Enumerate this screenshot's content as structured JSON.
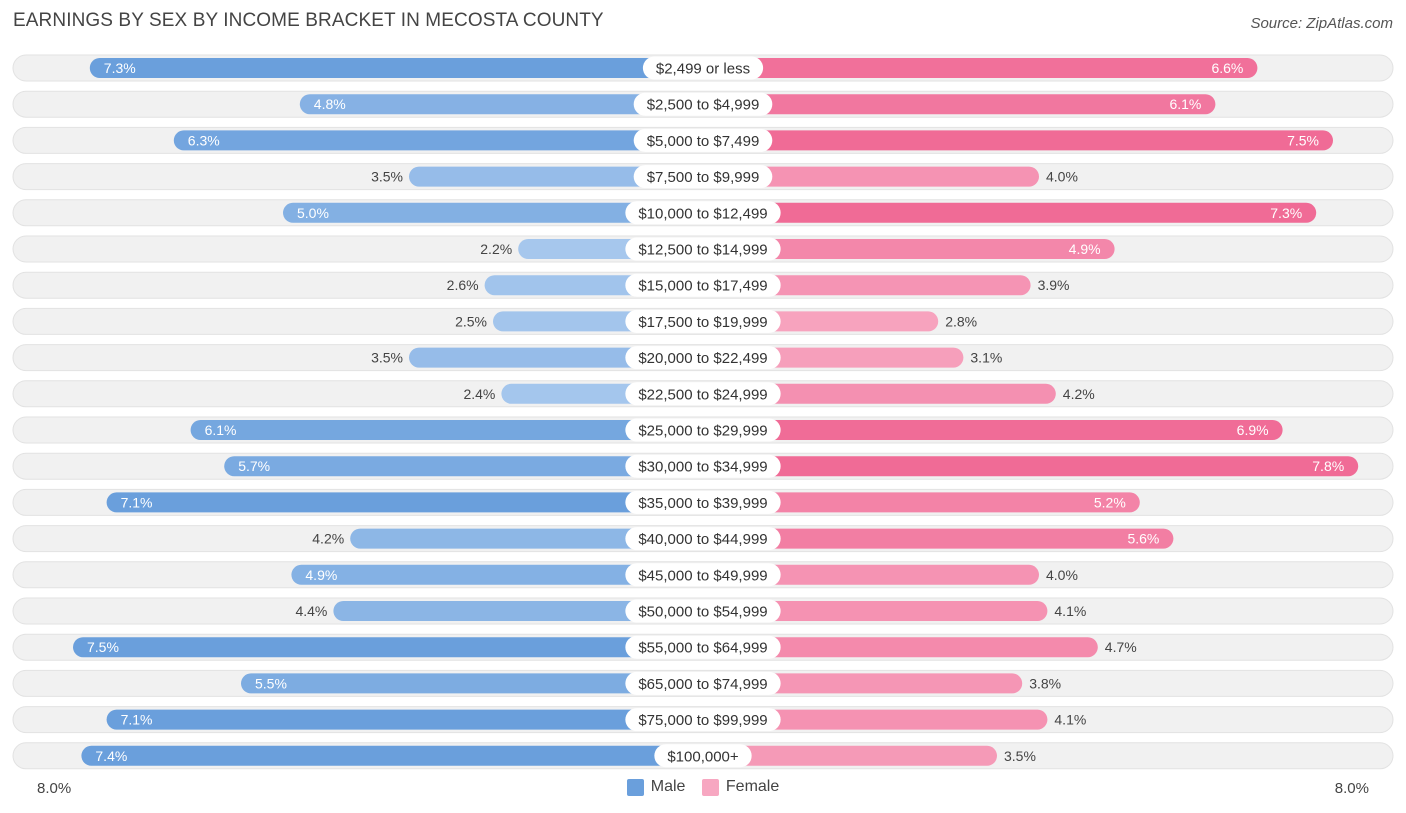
{
  "chart_data": {
    "type": "bar",
    "orientation": "horizontal-diverging",
    "title": "EARNINGS BY SEX BY INCOME BRACKET IN MECOSTA COUNTY",
    "source": "Source: ZipAtlas.com",
    "categories": [
      "$2,499 or less",
      "$2,500 to $4,999",
      "$5,000 to $7,499",
      "$7,500 to $9,999",
      "$10,000 to $12,499",
      "$12,500 to $14,999",
      "$15,000 to $17,499",
      "$17,500 to $19,999",
      "$20,000 to $22,499",
      "$22,500 to $24,999",
      "$25,000 to $29,999",
      "$30,000 to $34,999",
      "$35,000 to $39,999",
      "$40,000 to $44,999",
      "$45,000 to $49,999",
      "$50,000 to $54,999",
      "$55,000 to $64,999",
      "$65,000 to $74,999",
      "$75,000 to $99,999",
      "$100,000+"
    ],
    "series": [
      {
        "name": "Male",
        "values": [
          7.3,
          4.8,
          6.3,
          3.5,
          5.0,
          2.2,
          2.6,
          2.5,
          3.5,
          2.4,
          6.1,
          5.7,
          7.1,
          4.2,
          4.9,
          4.4,
          7.5,
          5.5,
          7.1,
          7.4
        ],
        "labels": [
          "7.3%",
          "4.8%",
          "6.3%",
          "3.5%",
          "5.0%",
          "2.2%",
          "2.6%",
          "2.5%",
          "3.5%",
          "2.4%",
          "6.1%",
          "5.7%",
          "7.1%",
          "4.2%",
          "4.9%",
          "4.4%",
          "7.5%",
          "5.5%",
          "7.1%",
          "7.4%"
        ]
      },
      {
        "name": "Female",
        "values": [
          6.6,
          6.1,
          7.5,
          4.0,
          7.3,
          4.9,
          3.9,
          2.8,
          3.1,
          4.2,
          6.9,
          7.8,
          5.2,
          5.6,
          4.0,
          4.1,
          4.7,
          3.8,
          4.1,
          3.5
        ],
        "labels": [
          "6.6%",
          "6.1%",
          "7.5%",
          "4.0%",
          "7.3%",
          "4.9%",
          "3.9%",
          "2.8%",
          "3.1%",
          "4.2%",
          "6.9%",
          "7.8%",
          "5.2%",
          "5.6%",
          "4.0%",
          "4.1%",
          "4.7%",
          "3.8%",
          "4.1%",
          "3.5%"
        ]
      }
    ],
    "xlim": [
      0,
      8.0
    ],
    "axis_left_label": "8.0%",
    "axis_right_label": "8.0%",
    "legend": [
      "Male",
      "Female"
    ],
    "colors": {
      "male_strong": "#6a9fdc",
      "male_light": "#a9c9ee",
      "female_strong": "#f06b96",
      "female_light": "#f7a7c1",
      "row_bg": "#f1f1f1",
      "row_border": "#e2e2e2"
    }
  }
}
